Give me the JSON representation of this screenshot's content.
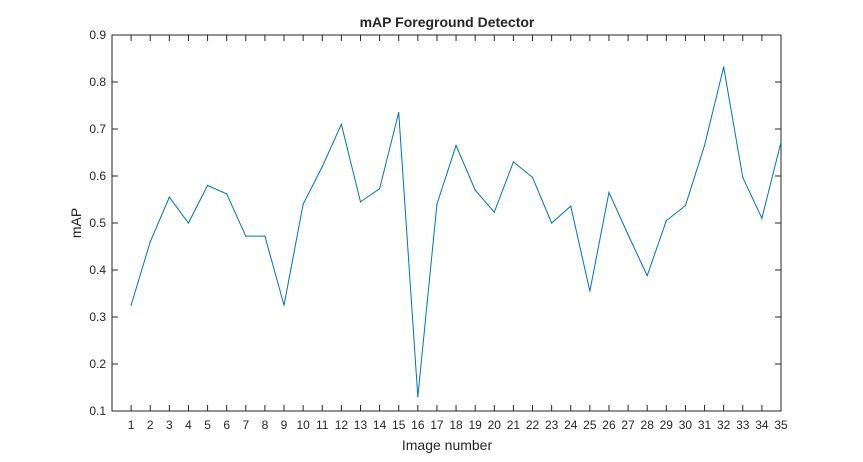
{
  "chart_data": {
    "type": "line",
    "title": "mAP Foreground Detector",
    "xlabel": "Image number",
    "ylabel": "mAP",
    "x": [
      1,
      2,
      3,
      4,
      5,
      6,
      7,
      8,
      9,
      10,
      11,
      12,
      13,
      14,
      15,
      16,
      17,
      18,
      19,
      20,
      21,
      22,
      23,
      24,
      25,
      26,
      27,
      28,
      29,
      30,
      31,
      32,
      33,
      34,
      35
    ],
    "xlim": [
      0,
      35
    ],
    "ylim": [
      0.1,
      0.9
    ],
    "xticks": [
      "1",
      "2",
      "3",
      "4",
      "5",
      "6",
      "7",
      "8",
      "9",
      "10",
      "11",
      "12",
      "13",
      "14",
      "15",
      "16",
      "17",
      "18",
      "19",
      "20",
      "21",
      "22",
      "23",
      "24",
      "25",
      "26",
      "27",
      "28",
      "29",
      "30",
      "31",
      "32",
      "33",
      "34",
      "35"
    ],
    "yticks": [
      "0.1",
      "0.2",
      "0.3",
      "0.4",
      "0.5",
      "0.6",
      "0.7",
      "0.8",
      "0.9"
    ],
    "series": [
      {
        "color": "#0072bd",
        "values": [
          0.325,
          0.46,
          0.555,
          0.5,
          0.58,
          0.562,
          0.472,
          0.472,
          0.325,
          0.54,
          0.62,
          0.71,
          0.545,
          0.573,
          0.735,
          0.13,
          0.54,
          0.665,
          0.57,
          0.523,
          0.63,
          0.597,
          0.5,
          0.536,
          0.355,
          0.565,
          0.475,
          0.388,
          0.505,
          0.537,
          0.665,
          0.832,
          0.597,
          0.51,
          0.672
        ]
      }
    ],
    "grid": false,
    "legend": "none"
  }
}
